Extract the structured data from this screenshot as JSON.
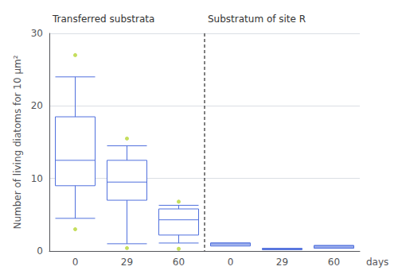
{
  "chart_data": {
    "type": "boxplot",
    "ylabel": "Number of living diatoms for 10 μm²",
    "xlabel": "days",
    "ylim": [
      0,
      30
    ],
    "yticks": [
      0,
      10,
      20,
      30
    ],
    "groups": [
      {
        "title": "Transferred substrata",
        "categories": [
          "0",
          "29",
          "60"
        ],
        "values": [
          [
            4.5,
            9.0,
            12.5,
            18.5,
            24.0
          ],
          [
            1.0,
            7.0,
            9.5,
            12.5,
            14.5
          ],
          [
            1.1,
            2.2,
            4.3,
            5.8,
            6.3
          ]
        ],
        "outliers": [
          [
            3.0,
            27.0
          ],
          [
            0.4,
            15.5
          ],
          [
            0.3,
            6.8
          ]
        ]
      },
      {
        "title": "Substratum of site R",
        "categories": [
          "0",
          "29",
          "60"
        ],
        "values": [
          [
            0.7,
            0.7,
            0.9,
            1.1,
            1.1
          ],
          [
            0.2,
            0.2,
            0.28,
            0.35,
            0.35
          ],
          [
            0.4,
            0.4,
            0.55,
            0.75,
            0.75
          ]
        ],
        "outliers": [
          [],
          [],
          []
        ]
      }
    ]
  }
}
